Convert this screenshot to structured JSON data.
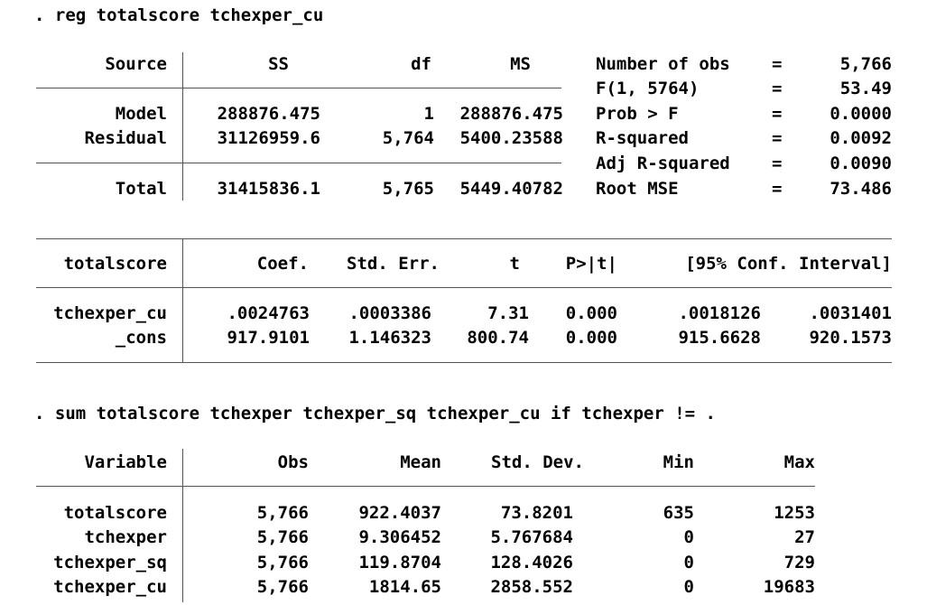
{
  "cmd1": ". reg totalscore tchexper_cu",
  "anova": {
    "headers": [
      "Source",
      "SS",
      "df",
      "MS"
    ],
    "rows": [
      {
        "source": "Model",
        "ss": "288876.475",
        "df": "1",
        "ms": "288876.475"
      },
      {
        "source": "Residual",
        "ss": "31126959.6",
        "df": "5,764",
        "ms": "5400.23588"
      },
      {
        "source": "Total",
        "ss": "31415836.1",
        "df": "5,765",
        "ms": "5449.40782"
      }
    ]
  },
  "stats": [
    {
      "label": "Number of obs",
      "eq": "=",
      "value": "5,766"
    },
    {
      "label": "F(1, 5764)",
      "eq": "=",
      "value": "53.49"
    },
    {
      "label": "Prob > F",
      "eq": "=",
      "value": "0.0000"
    },
    {
      "label": "R-squared",
      "eq": "=",
      "value": "0.0092"
    },
    {
      "label": "Adj R-squared",
      "eq": "=",
      "value": "0.0090"
    },
    {
      "label": "Root MSE",
      "eq": "=",
      "value": "73.486"
    }
  ],
  "coef": {
    "headers": [
      "totalscore",
      "Coef.",
      "Std. Err.",
      "t",
      "P>|t|",
      "[95% Conf. Interval]"
    ],
    "rows": [
      {
        "var": "tchexper_cu",
        "coef": ".0024763",
        "se": ".0003386",
        "t": "7.31",
        "p": "0.000",
        "lo": ".0018126",
        "hi": ".0031401"
      },
      {
        "var": "_cons",
        "coef": "917.9101",
        "se": "1.146323",
        "t": "800.74",
        "p": "0.000",
        "lo": "915.6628",
        "hi": "920.1573"
      }
    ]
  },
  "cmd2": ". sum totalscore tchexper tchexper_sq tchexper_cu if tchexper != .",
  "summary": {
    "headers": [
      "Variable",
      "Obs",
      "Mean",
      "Std. Dev.",
      "Min",
      "Max"
    ],
    "rows": [
      {
        "var": "totalscore",
        "obs": "5,766",
        "mean": "922.4037",
        "sd": "73.8201",
        "min": "635",
        "max": "1253"
      },
      {
        "var": "tchexper",
        "obs": "5,766",
        "mean": "9.306452",
        "sd": "5.767684",
        "min": "0",
        "max": "27"
      },
      {
        "var": "tchexper_sq",
        "obs": "5,766",
        "mean": "119.8704",
        "sd": "128.4026",
        "min": "0",
        "max": "729"
      },
      {
        "var": "tchexper_cu",
        "obs": "5,766",
        "mean": "1814.65",
        "sd": "2858.552",
        "min": "0",
        "max": "19683"
      }
    ]
  }
}
